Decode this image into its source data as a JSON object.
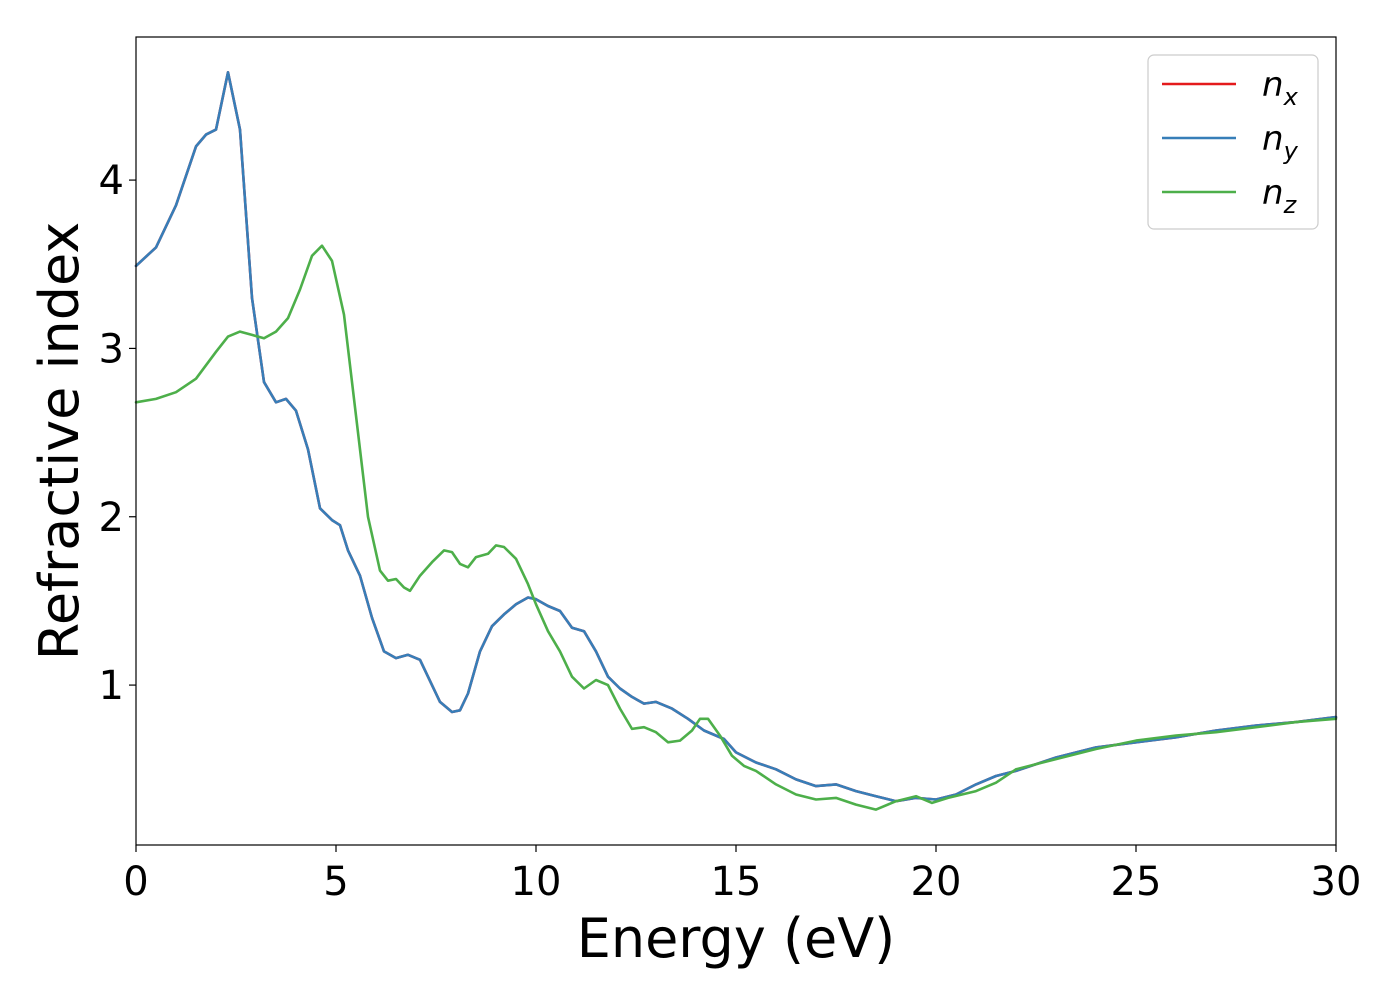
{
  "chart_data": {
    "type": "line",
    "xlabel": "Energy (eV)",
    "ylabel": "Refractive index",
    "xlim": [
      0,
      30
    ],
    "ylim": [
      0.05,
      4.85
    ],
    "xticks": [
      0,
      5,
      10,
      15,
      20,
      25,
      30
    ],
    "yticks": [
      1,
      2,
      3,
      4
    ],
    "grid": false,
    "legend_position": "top-right",
    "series": [
      {
        "name": "n_x",
        "legend_base": "n",
        "legend_sub": "x",
        "color": "#e41a1c",
        "x": [
          0,
          0.5,
          1.0,
          1.5,
          1.75,
          2.0,
          2.3,
          2.6,
          2.9,
          3.2,
          3.5,
          3.75,
          4.0,
          4.3,
          4.6,
          4.9,
          5.1,
          5.3,
          5.6,
          5.9,
          6.2,
          6.5,
          6.8,
          7.1,
          7.3,
          7.6,
          7.9,
          8.1,
          8.3,
          8.6,
          8.9,
          9.2,
          9.5,
          9.8,
          10.0,
          10.3,
          10.6,
          10.9,
          11.2,
          11.5,
          11.8,
          12.1,
          12.4,
          12.7,
          13.0,
          13.4,
          13.8,
          14.2,
          14.7,
          15.0,
          15.5,
          16.0,
          16.5,
          17.0,
          17.5,
          18.0,
          18.5,
          19.0,
          19.5,
          20.0,
          20.5,
          21.0,
          21.5,
          22.0,
          23.0,
          24.0,
          25.0,
          26.0,
          27.0,
          28.0,
          29.0,
          30.0
        ],
        "values": [
          3.49,
          3.6,
          3.85,
          4.2,
          4.27,
          4.3,
          4.64,
          4.3,
          3.3,
          2.8,
          2.68,
          2.7,
          2.63,
          2.4,
          2.05,
          1.98,
          1.95,
          1.8,
          1.65,
          1.4,
          1.2,
          1.16,
          1.18,
          1.15,
          1.05,
          0.9,
          0.84,
          0.85,
          0.95,
          1.2,
          1.35,
          1.42,
          1.48,
          1.52,
          1.51,
          1.47,
          1.44,
          1.34,
          1.32,
          1.2,
          1.05,
          0.98,
          0.93,
          0.89,
          0.9,
          0.86,
          0.8,
          0.73,
          0.68,
          0.6,
          0.54,
          0.5,
          0.44,
          0.4,
          0.41,
          0.37,
          0.34,
          0.31,
          0.33,
          0.32,
          0.35,
          0.41,
          0.46,
          0.49,
          0.57,
          0.63,
          0.66,
          0.69,
          0.73,
          0.76,
          0.78,
          0.81
        ]
      },
      {
        "name": "n_y",
        "legend_base": "n",
        "legend_sub": "y",
        "color": "#377eb8",
        "x": [
          0,
          0.5,
          1.0,
          1.5,
          1.75,
          2.0,
          2.3,
          2.6,
          2.9,
          3.2,
          3.5,
          3.75,
          4.0,
          4.3,
          4.6,
          4.9,
          5.1,
          5.3,
          5.6,
          5.9,
          6.2,
          6.5,
          6.8,
          7.1,
          7.3,
          7.6,
          7.9,
          8.1,
          8.3,
          8.6,
          8.9,
          9.2,
          9.5,
          9.8,
          10.0,
          10.3,
          10.6,
          10.9,
          11.2,
          11.5,
          11.8,
          12.1,
          12.4,
          12.7,
          13.0,
          13.4,
          13.8,
          14.2,
          14.7,
          15.0,
          15.5,
          16.0,
          16.5,
          17.0,
          17.5,
          18.0,
          18.5,
          19.0,
          19.5,
          20.0,
          20.5,
          21.0,
          21.5,
          22.0,
          23.0,
          24.0,
          25.0,
          26.0,
          27.0,
          28.0,
          29.0,
          30.0
        ],
        "values": [
          3.49,
          3.6,
          3.85,
          4.2,
          4.27,
          4.3,
          4.64,
          4.3,
          3.3,
          2.8,
          2.68,
          2.7,
          2.63,
          2.4,
          2.05,
          1.98,
          1.95,
          1.8,
          1.65,
          1.4,
          1.2,
          1.16,
          1.18,
          1.15,
          1.05,
          0.9,
          0.84,
          0.85,
          0.95,
          1.2,
          1.35,
          1.42,
          1.48,
          1.52,
          1.51,
          1.47,
          1.44,
          1.34,
          1.32,
          1.2,
          1.05,
          0.98,
          0.93,
          0.89,
          0.9,
          0.86,
          0.8,
          0.73,
          0.68,
          0.6,
          0.54,
          0.5,
          0.44,
          0.4,
          0.41,
          0.37,
          0.34,
          0.31,
          0.33,
          0.32,
          0.35,
          0.41,
          0.46,
          0.49,
          0.57,
          0.63,
          0.66,
          0.69,
          0.73,
          0.76,
          0.78,
          0.81
        ]
      },
      {
        "name": "n_z",
        "legend_base": "n",
        "legend_sub": "z",
        "color": "#4daf4a",
        "x": [
          0,
          0.5,
          1.0,
          1.5,
          2.0,
          2.3,
          2.6,
          2.9,
          3.2,
          3.5,
          3.8,
          4.1,
          4.4,
          4.65,
          4.9,
          5.2,
          5.5,
          5.8,
          6.1,
          6.3,
          6.5,
          6.7,
          6.85,
          7.1,
          7.4,
          7.7,
          7.9,
          8.1,
          8.3,
          8.5,
          8.8,
          9.0,
          9.2,
          9.5,
          9.8,
          10.0,
          10.3,
          10.6,
          10.9,
          11.2,
          11.5,
          11.8,
          12.1,
          12.4,
          12.7,
          13.0,
          13.3,
          13.6,
          13.9,
          14.1,
          14.3,
          14.6,
          14.9,
          15.2,
          15.5,
          16.0,
          16.5,
          17.0,
          17.5,
          18.0,
          18.5,
          19.0,
          19.5,
          19.9,
          20.3,
          21.0,
          21.5,
          22.0,
          23.0,
          24.0,
          25.0,
          26.0,
          27.0,
          28.0,
          29.0,
          30.0
        ],
        "values": [
          2.68,
          2.7,
          2.74,
          2.82,
          2.98,
          3.07,
          3.1,
          3.08,
          3.06,
          3.1,
          3.18,
          3.35,
          3.55,
          3.61,
          3.52,
          3.2,
          2.6,
          2.0,
          1.68,
          1.62,
          1.63,
          1.58,
          1.56,
          1.65,
          1.73,
          1.8,
          1.79,
          1.72,
          1.7,
          1.76,
          1.78,
          1.83,
          1.82,
          1.75,
          1.6,
          1.48,
          1.32,
          1.2,
          1.05,
          0.98,
          1.03,
          1.0,
          0.86,
          0.74,
          0.75,
          0.72,
          0.66,
          0.67,
          0.73,
          0.8,
          0.8,
          0.7,
          0.58,
          0.52,
          0.49,
          0.41,
          0.35,
          0.32,
          0.33,
          0.29,
          0.26,
          0.31,
          0.34,
          0.3,
          0.33,
          0.37,
          0.42,
          0.5,
          0.56,
          0.62,
          0.67,
          0.7,
          0.72,
          0.75,
          0.78,
          0.8
        ]
      }
    ]
  }
}
